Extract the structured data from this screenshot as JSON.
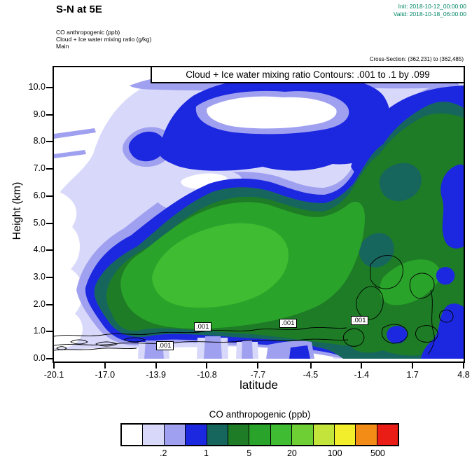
{
  "header": {
    "title": "S-N at 5E",
    "init_label": "Init: 2018-10-12_00:00:00",
    "valid_label": "Valid: 2018-10-18_06:00:00",
    "legend_lines": [
      "CO anthropogenic  (ppb)",
      "Cloud + Ice water mixing ratio  (g/kg)",
      "Main"
    ],
    "cross_section": "Cross-Section: (362,231) to (362,485)"
  },
  "plot": {
    "overlay_title": "Cloud + Ice water mixing ratio Contours: .001 to .1 by .099"
  },
  "chart_data": {
    "type": "contour",
    "title": "S-N at 5E",
    "fill_variable": "CO anthropogenic (ppb)",
    "line_variable": "Cloud + Ice water mixing ratio (g/kg)",
    "x_axis": {
      "label": "latitude",
      "ticks": [
        -20.1,
        -17.0,
        -13.9,
        -10.8,
        -7.7,
        -4.5,
        -1.4,
        1.7,
        4.8
      ],
      "range": [
        -20.1,
        4.8
      ]
    },
    "y_axis": {
      "label": "Height (km)",
      "ticks": [
        0,
        1,
        2,
        3,
        4,
        5,
        6,
        7,
        8,
        9,
        10
      ],
      "range": [
        0,
        10.9
      ]
    },
    "fill_levels": [
      0.1,
      0.2,
      0.5,
      1,
      2,
      5,
      10,
      20,
      50,
      100,
      200,
      500
    ],
    "fill_colors": [
      "#ffffff",
      "#d8d8fa",
      "#a0a0f0",
      "#1c28e0",
      "#17665e",
      "#1d7c25",
      "#2aa32a",
      "#3fbc31",
      "#6ecf35",
      "#c3e43a",
      "#f2ee2b",
      "#f28c17",
      "#ea1c16"
    ],
    "colorbar": {
      "title": "CO anthropogenic  (ppb)",
      "labels": [
        ".2",
        "1",
        "5",
        "20",
        "100",
        "500"
      ],
      "label_boundary_indices": [
        2,
        4,
        6,
        8,
        10,
        12
      ]
    },
    "contour_line": {
      "levels": [
        0.001,
        0.1
      ],
      "label": ".001",
      "label_positions_lat_km": [
        [
          -13.7,
          0.55
        ],
        [
          -11.5,
          1.15
        ],
        [
          -6.3,
          1.3
        ],
        [
          -1.9,
          1.45
        ]
      ]
    },
    "features": [
      {
        "name": "mid-level CO plume core",
        "lat_range": [
          -16,
          -4
        ],
        "height_km": [
          1.3,
          5.3
        ],
        "value_ppb": "5-20"
      },
      {
        "name": "plume envelope (dark teal/green)",
        "lat_range": [
          -17.7,
          4.8
        ],
        "height_km": [
          0.8,
          6.3
        ],
        "value_ppb": "1-5"
      },
      {
        "name": "upper-level enhanced layer (blue)",
        "lat_range": [
          -13.5,
          0.5
        ],
        "height_km": [
          7,
          10.3
        ],
        "value_ppb": "0.5-1"
      },
      {
        "name": "clean slot inside upper layer (white)",
        "lat_range": [
          -12,
          -3.5
        ],
        "height_km": [
          8.6,
          9.7
        ],
        "value_ppb": "<0.1"
      },
      {
        "name": "deep polluted column on right side",
        "lat_range": [
          -2,
          4.8
        ],
        "height_km": [
          0,
          9.5
        ],
        "value_ppb": "1-5 with blue (0.5-1) pockets"
      },
      {
        "name": "clean boundary layer on left",
        "lat_range": [
          -20.1,
          -6
        ],
        "height_km": [
          0,
          0.35
        ],
        "value_ppb": "<0.1"
      },
      {
        "name": "near-surface banded layer",
        "lat_range": [
          -20.1,
          -4.5
        ],
        "height_km": [
          0.3,
          0.9
        ],
        "value_ppb": "0.1-0.5 with vertical stripes"
      },
      {
        "name": "cloud/ice 0.001 contour cells",
        "lat_range": [
          -20.1,
          0
        ],
        "height_km": [
          0.4,
          1.3
        ]
      },
      {
        "name": "cloud/ice contour cells right of -1.5",
        "lat_range": [
          -1.5,
          3
        ],
        "height_km": [
          0.5,
          3.5
        ]
      }
    ]
  }
}
